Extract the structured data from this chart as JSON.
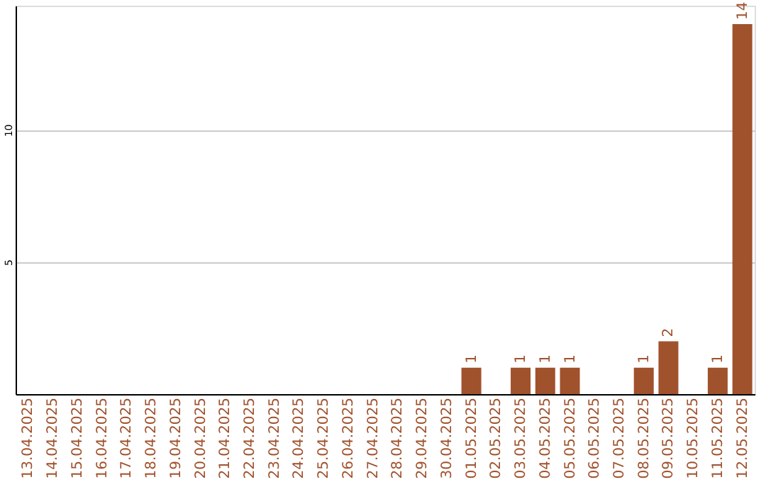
{
  "chart_data": {
    "type": "bar",
    "categories": [
      "13.04.2025",
      "14.04.2025",
      "15.04.2025",
      "16.04.2025",
      "17.04.2025",
      "18.04.2025",
      "19.04.2025",
      "20.04.2025",
      "21.04.2025",
      "22.04.2025",
      "23.04.2025",
      "24.04.2025",
      "25.04.2025",
      "26.04.2025",
      "27.04.2025",
      "28.04.2025",
      "29.04.2025",
      "30.04.2025",
      "01.05.2025",
      "02.05.2025",
      "03.05.2025",
      "04.05.2025",
      "05.05.2025",
      "06.05.2025",
      "07.05.2025",
      "08.05.2025",
      "09.05.2025",
      "10.05.2025",
      "11.05.2025",
      "12.05.2025"
    ],
    "values": [
      0,
      0,
      0,
      0,
      0,
      0,
      0,
      0,
      0,
      0,
      0,
      0,
      0,
      0,
      0,
      0,
      0,
      0,
      1,
      0,
      1,
      1,
      1,
      0,
      0,
      1,
      2,
      0,
      1,
      14
    ],
    "value_labels": [
      null,
      null,
      null,
      null,
      null,
      null,
      null,
      null,
      null,
      null,
      null,
      null,
      null,
      null,
      null,
      null,
      null,
      null,
      "1",
      null,
      "1",
      "1",
      "1",
      null,
      null,
      "1",
      "2",
      null,
      "1",
      "14"
    ],
    "color": "#a0522d",
    "ylim": [
      0,
      14.7
    ],
    "yticks": [
      5,
      10
    ],
    "grid": "y"
  }
}
